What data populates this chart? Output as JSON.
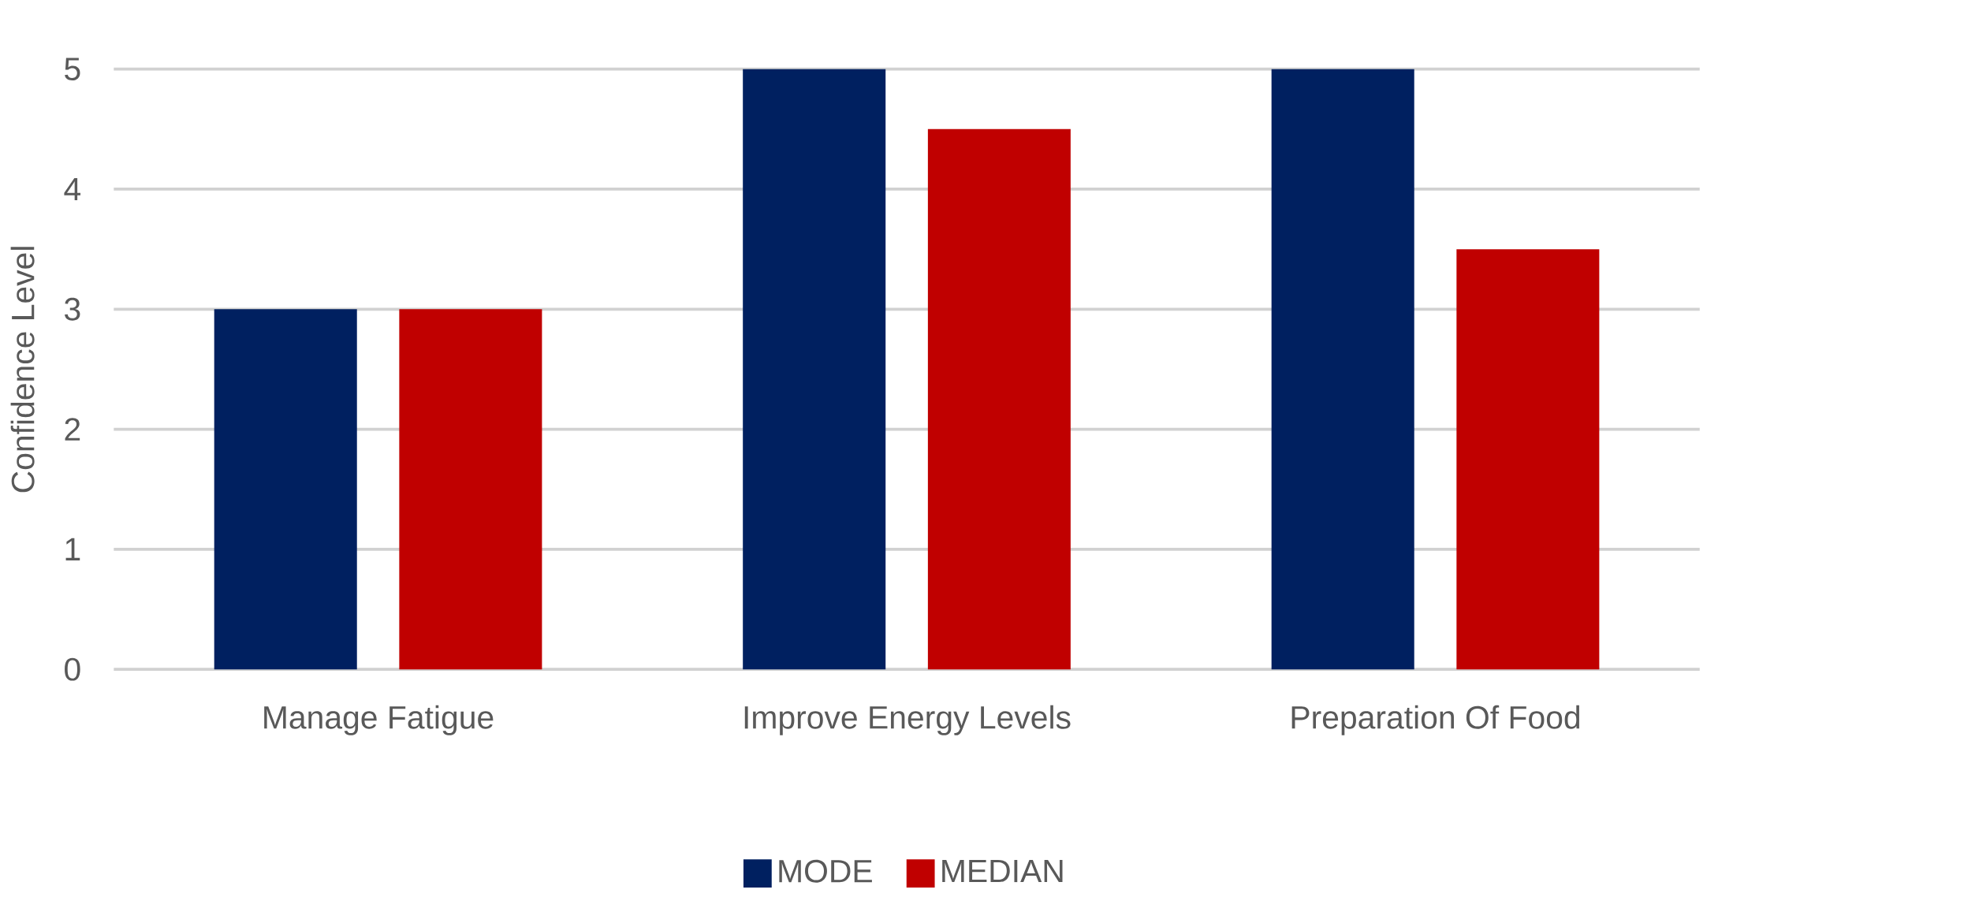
{
  "chart_data": {
    "type": "bar",
    "ylabel": "Confidence Level",
    "categories": [
      "Manage Fatigue",
      "Improve Energy Levels",
      "Preparation Of Food"
    ],
    "series": [
      {
        "name": "MODE",
        "color": "#002060",
        "values": [
          3,
          5,
          5
        ]
      },
      {
        "name": "MEDIAN",
        "color": "#c00000",
        "values": [
          3,
          4.5,
          3.5
        ]
      }
    ],
    "ylim": [
      0,
      5
    ],
    "yticks": [
      0,
      1,
      2,
      3,
      4,
      5
    ],
    "grid": "y",
    "legend": "bottom"
  }
}
